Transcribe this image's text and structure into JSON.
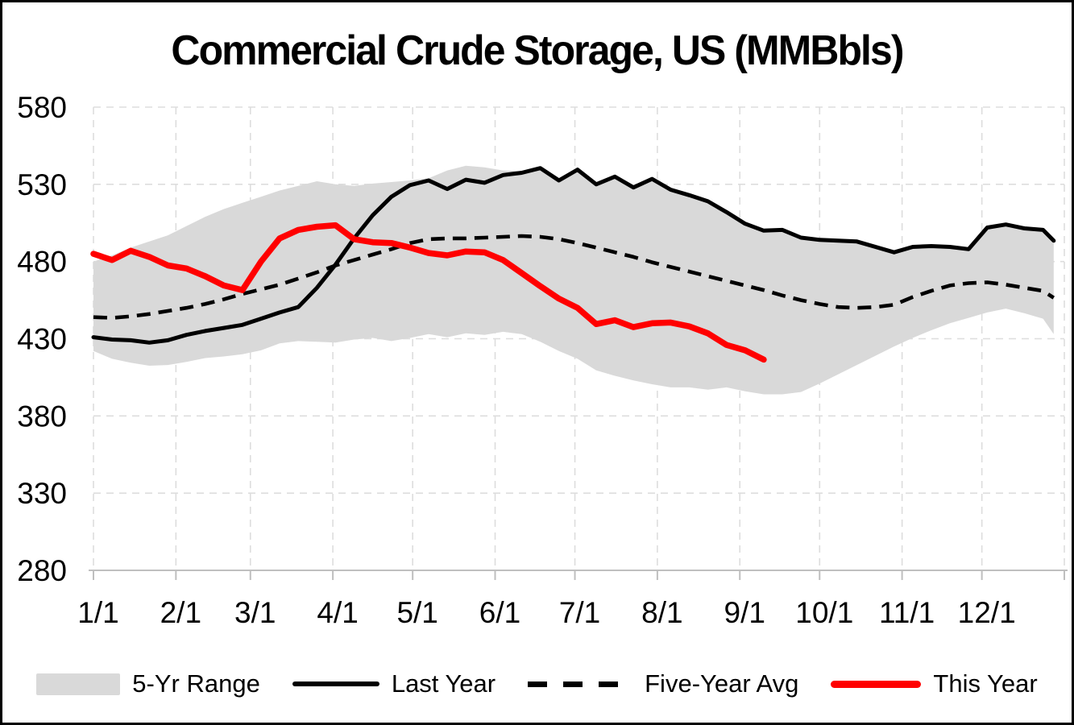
{
  "title": "Commercial Crude Storage, US (MMBbls)",
  "colors": {
    "background": "#FFFFFF",
    "band": "#D9D9D9",
    "gridline": "#DDDDDD",
    "axis": "#BFBFBF",
    "text": "#000000",
    "last_year": "#000000",
    "five_year_avg": "#000000",
    "this_year": "#FF0000"
  },
  "legend": {
    "items": [
      {
        "label": "5-Yr Range",
        "type": "area",
        "color": "#D9D9D9"
      },
      {
        "label": "Last Year",
        "type": "line-solid",
        "color": "#000000"
      },
      {
        "label": "Five-Year Avg",
        "type": "line-dashed",
        "color": "#000000"
      },
      {
        "label": "This Year",
        "type": "line-red",
        "color": "#FF0000"
      }
    ]
  },
  "chart_data": {
    "type": "line",
    "title": "Commercial Crude Storage, US (MMBbls)",
    "xlabel": "",
    "ylabel": "",
    "ylim": [
      280,
      580
    ],
    "y_ticks": [
      580,
      530,
      480,
      430,
      380,
      330,
      280
    ],
    "x_tick_labels": [
      "1/1",
      "2/1",
      "3/1",
      "4/1",
      "5/1",
      "6/1",
      "7/1",
      "8/1",
      "9/1",
      "10/1",
      "11/1",
      "12/1"
    ],
    "x_tick_days": [
      1,
      32,
      60,
      91,
      121,
      152,
      182,
      213,
      244,
      274,
      305,
      335
    ],
    "x_domain_days": [
      1,
      366
    ],
    "grid": true,
    "legend_position": "bottom",
    "sample_days": [
      1,
      8,
      15,
      22,
      29,
      36,
      43,
      50,
      57,
      64,
      71,
      78,
      85,
      92,
      99,
      106,
      113,
      120,
      127,
      134,
      141,
      148,
      155,
      162,
      169,
      176,
      183,
      190,
      197,
      204,
      211,
      218,
      225,
      232,
      239,
      246,
      253,
      260,
      267,
      274,
      281,
      288,
      295,
      302,
      309,
      316,
      323,
      330,
      337,
      344,
      351,
      358,
      362
    ],
    "series": [
      {
        "name": "5-Yr Range",
        "type": "band",
        "color": "#D9D9D9",
        "top": [
          480,
          484,
          489,
          493,
          497,
          503,
          509,
          514,
          518,
          522,
          526,
          529,
          532,
          530,
          529,
          530.5,
          531.5,
          532.5,
          534,
          539,
          542,
          541,
          539,
          538.5,
          541.5,
          533.5,
          540.5,
          531,
          536,
          529,
          534.5,
          527.5,
          524,
          520,
          513,
          505.5,
          501,
          501.5,
          496.5,
          495,
          494.5,
          494,
          491,
          487,
          490.5,
          491,
          490.5,
          489,
          503,
          505,
          502.5,
          501.5,
          494.5
        ],
        "bottom": [
          422,
          417,
          414.5,
          412.5,
          413,
          415,
          417.5,
          418.5,
          420,
          422.5,
          427,
          428.5,
          428,
          427.5,
          429.5,
          430.5,
          428.5,
          430.5,
          433,
          431,
          433.5,
          432.5,
          434.5,
          433,
          428,
          422,
          417,
          409.5,
          406,
          403,
          400.5,
          398.5,
          398.5,
          397,
          398.5,
          396,
          394,
          394,
          395.5,
          401,
          407,
          413,
          419,
          425,
          430.5,
          435.5,
          440,
          443.5,
          447,
          449.5,
          446.5,
          443,
          433
        ]
      },
      {
        "name": "Last Year",
        "type": "line",
        "style": "solid",
        "color": "#000000",
        "values": [
          431,
          429.5,
          429,
          427.5,
          429,
          432.5,
          435,
          437,
          439,
          443,
          447,
          450.5,
          463,
          478,
          495,
          510,
          522,
          529.5,
          532.5,
          527,
          533,
          531,
          536,
          537.5,
          540.5,
          532.5,
          539.5,
          530,
          535,
          528,
          533.5,
          526.5,
          523,
          519,
          512,
          504.5,
          500,
          500.5,
          495.5,
          494,
          493.5,
          493,
          489.5,
          486,
          489.5,
          490,
          489.5,
          488,
          502,
          504,
          501.5,
          500.5,
          493.5
        ]
      },
      {
        "name": "Five-Year Avg",
        "type": "line",
        "style": "dashed",
        "color": "#000000",
        "values": [
          444,
          443.5,
          444.5,
          446,
          448,
          450,
          452.5,
          455.5,
          459,
          462,
          465,
          469,
          473,
          477.5,
          481,
          484.5,
          488,
          492,
          494.5,
          495,
          495,
          495.5,
          496,
          496.5,
          496,
          494.5,
          492,
          489,
          486,
          483,
          479.5,
          476.5,
          473.5,
          470.5,
          467.5,
          464.5,
          461.5,
          458,
          455,
          452.5,
          450.5,
          450,
          450.5,
          452,
          457,
          461,
          464.5,
          466,
          466.5,
          465,
          463,
          461,
          456.5
        ]
      },
      {
        "name": "This Year",
        "type": "line",
        "style": "solid",
        "color": "#FF0000",
        "end_day": 253,
        "values": [
          485,
          481,
          487,
          483,
          477.5,
          475.5,
          470.5,
          464.5,
          461.5,
          480,
          495,
          500.5,
          502.5,
          503.5,
          494.5,
          492.5,
          492,
          489,
          485.5,
          484,
          486.5,
          486,
          481,
          472.5,
          464,
          456,
          450,
          439.5,
          442,
          437.5,
          440,
          440.5,
          438,
          433.5,
          426,
          422.5,
          416.5
        ]
      }
    ]
  }
}
